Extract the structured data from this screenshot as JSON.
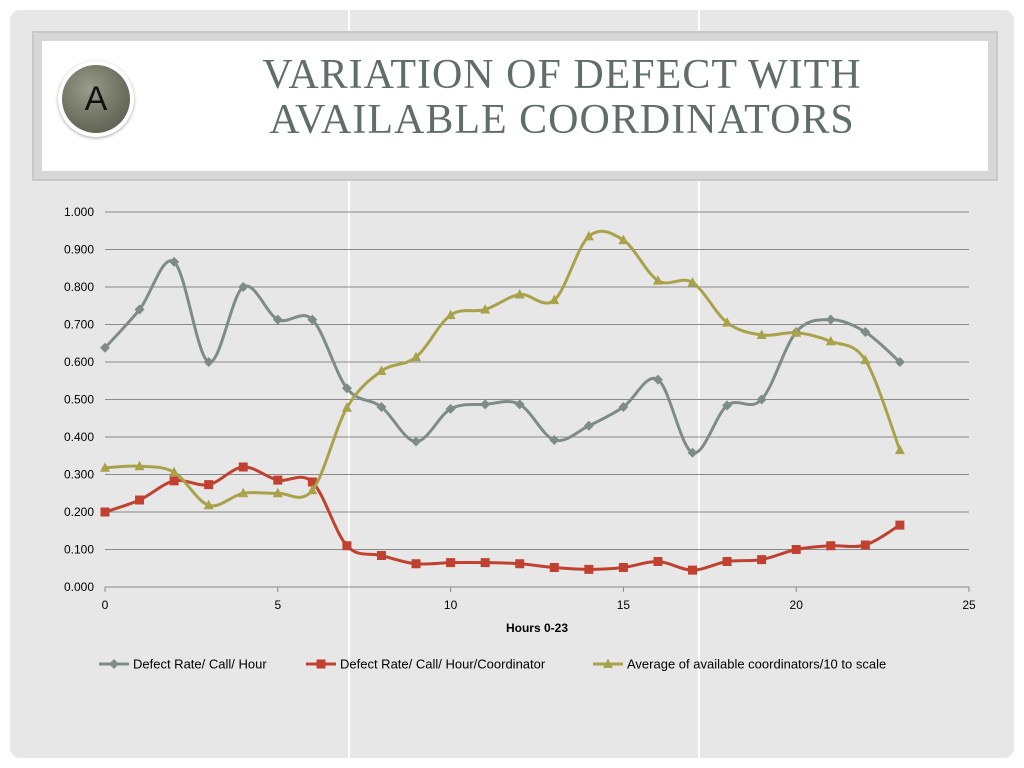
{
  "slide": {
    "badge_letter": "A",
    "title_line1": "VARIATION OF DEFECT WITH",
    "title_line2": "AVAILABLE COORDINATORS"
  },
  "chart_data": {
    "type": "line",
    "title": "",
    "xlabel": "Hours 0-23",
    "ylabel": "",
    "xlim": [
      0,
      25
    ],
    "ylim": [
      0,
      1.0
    ],
    "x_ticks": [
      0,
      5,
      10,
      15,
      20,
      25
    ],
    "y_ticks": [
      "0.000",
      "0.100",
      "0.200",
      "0.300",
      "0.400",
      "0.500",
      "0.600",
      "0.700",
      "0.800",
      "0.900",
      "1.000"
    ],
    "grid": "horizontal",
    "legend_position": "bottom",
    "x": [
      0,
      1,
      2,
      3,
      4,
      5,
      6,
      7,
      8,
      9,
      10,
      11,
      12,
      13,
      14,
      15,
      16,
      17,
      18,
      19,
      20,
      21,
      22,
      23
    ],
    "series": [
      {
        "name": "Defect Rate/ Call/ Hour",
        "color": "#7e8c88",
        "marker": "diamond",
        "values": [
          0.638,
          0.74,
          0.867,
          0.6,
          0.8,
          0.713,
          0.713,
          0.53,
          0.48,
          0.388,
          0.475,
          0.487,
          0.487,
          0.392,
          0.43,
          0.48,
          0.553,
          0.358,
          0.484,
          0.5,
          0.68,
          0.713,
          0.68,
          0.6
        ]
      },
      {
        "name": "Defect Rate/ Call/ Hour/Coordinator",
        "color": "#c0412f",
        "marker": "square",
        "values": [
          0.2,
          0.232,
          0.283,
          0.273,
          0.32,
          0.285,
          0.28,
          0.11,
          0.084,
          0.062,
          0.065,
          0.065,
          0.062,
          0.052,
          0.047,
          0.052,
          0.068,
          0.045,
          0.068,
          0.073,
          0.1,
          0.11,
          0.112,
          0.165
        ]
      },
      {
        "name": "Average of available coordinators/10 to scale",
        "color": "#a9a24a",
        "marker": "triangle",
        "values": [
          0.318,
          0.322,
          0.306,
          0.218,
          0.25,
          0.25,
          0.258,
          0.478,
          0.576,
          0.613,
          0.725,
          0.74,
          0.78,
          0.765,
          0.935,
          0.925,
          0.817,
          0.812,
          0.705,
          0.672,
          0.678,
          0.655,
          0.605,
          0.365
        ]
      }
    ]
  }
}
